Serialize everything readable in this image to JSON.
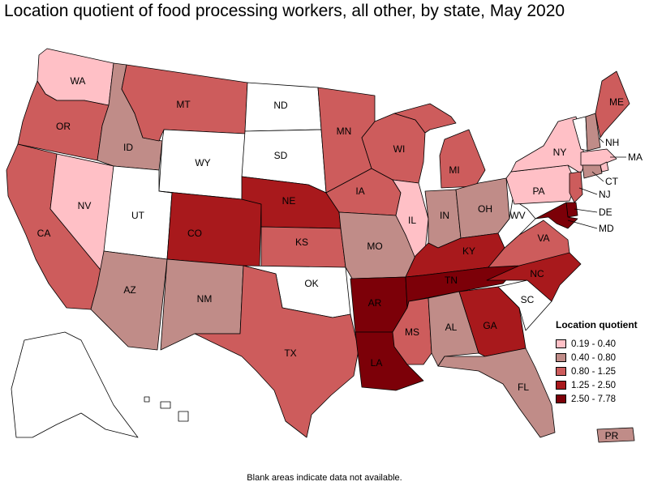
{
  "title": "Location quotient of food processing workers, all other, by state, May 2020",
  "footnote": "Blank areas indicate data not available.",
  "legend": {
    "title": "Location quotient",
    "bins": [
      {
        "label": "0.19 - 0.40",
        "color": "#ffc0c6"
      },
      {
        "label": "0.40 - 0.80",
        "color": "#c08c88"
      },
      {
        "label": "0.80 - 1.25",
        "color": "#cd5c5c"
      },
      {
        "label": "1.25 - 2.50",
        "color": "#a8191c"
      },
      {
        "label": "2.50 - 7.78",
        "color": "#7c0008"
      }
    ]
  },
  "no_data_color": "#ffffff",
  "states": [
    {
      "abbr": "WA",
      "bin": 0
    },
    {
      "abbr": "OR",
      "bin": 2
    },
    {
      "abbr": "CA",
      "bin": 2
    },
    {
      "abbr": "NV",
      "bin": 0
    },
    {
      "abbr": "ID",
      "bin": 1
    },
    {
      "abbr": "MT",
      "bin": 2
    },
    {
      "abbr": "WY",
      "bin": -1
    },
    {
      "abbr": "UT",
      "bin": -1
    },
    {
      "abbr": "AZ",
      "bin": 1
    },
    {
      "abbr": "CO",
      "bin": 3
    },
    {
      "abbr": "NM",
      "bin": 1
    },
    {
      "abbr": "ND",
      "bin": -1
    },
    {
      "abbr": "SD",
      "bin": -1
    },
    {
      "abbr": "NE",
      "bin": 3
    },
    {
      "abbr": "KS",
      "bin": 2
    },
    {
      "abbr": "OK",
      "bin": -1
    },
    {
      "abbr": "TX",
      "bin": 2
    },
    {
      "abbr": "MN",
      "bin": 2
    },
    {
      "abbr": "IA",
      "bin": 2
    },
    {
      "abbr": "MO",
      "bin": 1
    },
    {
      "abbr": "AR",
      "bin": 4
    },
    {
      "abbr": "LA",
      "bin": 4
    },
    {
      "abbr": "WI",
      "bin": 2
    },
    {
      "abbr": "IL",
      "bin": 0
    },
    {
      "abbr": "MI",
      "bin": 2
    },
    {
      "abbr": "IN",
      "bin": 1
    },
    {
      "abbr": "OH",
      "bin": 1
    },
    {
      "abbr": "KY",
      "bin": 3
    },
    {
      "abbr": "TN",
      "bin": 4
    },
    {
      "abbr": "MS",
      "bin": 2
    },
    {
      "abbr": "AL",
      "bin": 1
    },
    {
      "abbr": "GA",
      "bin": 3
    },
    {
      "abbr": "FL",
      "bin": 1
    },
    {
      "abbr": "SC",
      "bin": -1
    },
    {
      "abbr": "NC",
      "bin": 3
    },
    {
      "abbr": "VA",
      "bin": 2
    },
    {
      "abbr": "WV",
      "bin": -1
    },
    {
      "abbr": "PA",
      "bin": 0
    },
    {
      "abbr": "NY",
      "bin": 0
    },
    {
      "abbr": "VT",
      "bin": -1
    },
    {
      "abbr": "NH",
      "bin": 1
    },
    {
      "abbr": "ME",
      "bin": 2
    },
    {
      "abbr": "MA",
      "bin": 0
    },
    {
      "abbr": "RI",
      "bin": 0
    },
    {
      "abbr": "CT",
      "bin": 1
    },
    {
      "abbr": "NJ",
      "bin": 2
    },
    {
      "abbr": "DE",
      "bin": 4
    },
    {
      "abbr": "MD",
      "bin": 4
    },
    {
      "abbr": "AK",
      "bin": -1
    },
    {
      "abbr": "HI",
      "bin": -1
    },
    {
      "abbr": "PR",
      "bin": 1
    }
  ]
}
